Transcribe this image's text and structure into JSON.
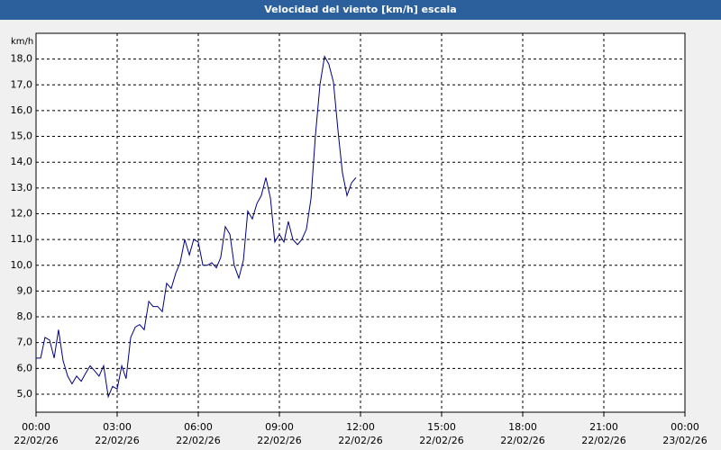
{
  "chart_data": {
    "type": "line",
    "title": "Velocidad del viento [km/h] escala",
    "ylabel": "km/h",
    "x": [
      0,
      0.17,
      0.33,
      0.5,
      0.67,
      0.83,
      1,
      1.17,
      1.33,
      1.5,
      1.67,
      1.83,
      2,
      2.17,
      2.33,
      2.5,
      2.67,
      2.83,
      3,
      3.17,
      3.33,
      3.5,
      3.67,
      3.83,
      4,
      4.17,
      4.33,
      4.5,
      4.67,
      4.83,
      5,
      5.17,
      5.33,
      5.5,
      5.67,
      5.83,
      6,
      6.17,
      6.33,
      6.5,
      6.67,
      6.83,
      7,
      7.17,
      7.33,
      7.5,
      7.67,
      7.83,
      8,
      8.17,
      8.33,
      8.5,
      8.67,
      8.83,
      9,
      9.17,
      9.33,
      9.5,
      9.67,
      9.83,
      10,
      10.17,
      10.33,
      10.5,
      10.67,
      10.83,
      11,
      11.17,
      11.33,
      11.5,
      11.67,
      11.83
    ],
    "values": [
      6.4,
      6.4,
      7.2,
      7.1,
      6.4,
      7.5,
      6.3,
      5.7,
      5.4,
      5.7,
      5.5,
      5.8,
      6.1,
      5.9,
      5.7,
      6.1,
      4.9,
      5.3,
      5.2,
      6.1,
      5.6,
      7.2,
      7.6,
      7.7,
      7.5,
      8.6,
      8.4,
      8.4,
      8.2,
      9.3,
      9.1,
      9.7,
      10.1,
      11.0,
      10.4,
      11.0,
      10.9,
      10.0,
      10.0,
      10.1,
      9.9,
      10.3,
      11.5,
      11.2,
      10.0,
      9.5,
      10.2,
      12.1,
      11.8,
      12.4,
      12.7,
      13.4,
      12.6,
      10.9,
      11.2,
      10.9,
      11.7,
      11.0,
      10.8,
      11.0,
      11.4,
      12.6,
      15.0,
      17.0,
      18.1,
      17.8,
      17.1,
      15.2,
      13.6,
      12.7,
      13.2,
      13.4
    ],
    "color": "#000080",
    "xlim": [
      0,
      24
    ],
    "xticks": [
      {
        "value": 0,
        "label": "00:00",
        "sublabel": "22/02/26"
      },
      {
        "value": 3,
        "label": "03:00",
        "sublabel": "22/02/26"
      },
      {
        "value": 6,
        "label": "06:00",
        "sublabel": "22/02/26"
      },
      {
        "value": 9,
        "label": "09:00",
        "sublabel": "22/02/26"
      },
      {
        "value": 12,
        "label": "12:00",
        "sublabel": "22/02/26"
      },
      {
        "value": 15,
        "label": "15:00",
        "sublabel": "22/02/26"
      },
      {
        "value": 18,
        "label": "18:00",
        "sublabel": "22/02/26"
      },
      {
        "value": 21,
        "label": "21:00",
        "sublabel": "22/02/26"
      },
      {
        "value": 24,
        "label": "00:00",
        "sublabel": "23/02/26"
      }
    ],
    "ylim": [
      4.3,
      19.0
    ],
    "yticks": [
      {
        "value": 5,
        "label": "5,0"
      },
      {
        "value": 6,
        "label": "6,0"
      },
      {
        "value": 7,
        "label": "7,0"
      },
      {
        "value": 8,
        "label": "8,0"
      },
      {
        "value": 9,
        "label": "9,0"
      },
      {
        "value": 10,
        "label": "10,0"
      },
      {
        "value": 11,
        "label": "11,0"
      },
      {
        "value": 12,
        "label": "12,0"
      },
      {
        "value": 13,
        "label": "13,0"
      },
      {
        "value": 14,
        "label": "14,0"
      },
      {
        "value": 15,
        "label": "15,0"
      },
      {
        "value": 16,
        "label": "16,0"
      },
      {
        "value": 17,
        "label": "17,0"
      },
      {
        "value": 18,
        "label": "18,0"
      }
    ],
    "grid": true
  }
}
